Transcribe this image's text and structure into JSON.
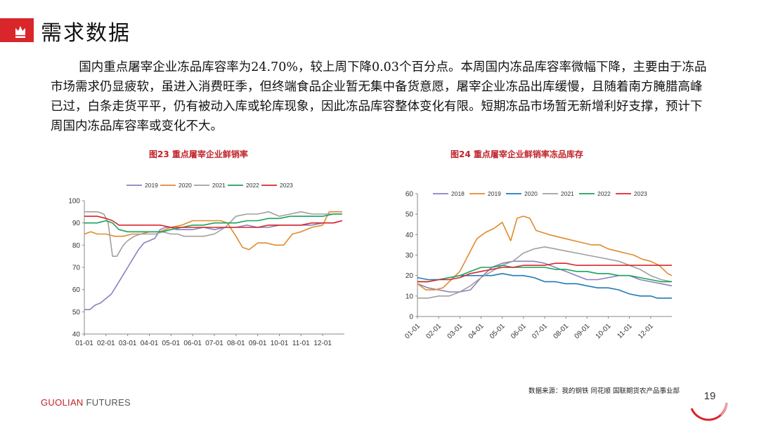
{
  "header": {
    "title": "需求数据"
  },
  "summary": "国内重点屠宰企业冻品库容率为24.70%，较上周下降0.03个百分点。本周国内冻品库容率微幅下降，主要由于冻品市场需求仍显疲软，虽进入消费旺季，但终端食品企业暂无集中备货意愿，屠宰企业冻品出库缓慢，且随着南方腌腊高峰已过，白条走货平平，仍有被动入库或轮库现象，因此冻品库容整体变化有限。短期冻品市场暂无新增利好支撑，预计下周国内冻品库容率或变化不大。",
  "footer": {
    "source": "数据来源：我的钢铁  同花顺  国联期货农产品事业部",
    "brand_main": "GUOLIAN",
    "brand_sub": " FUTURES",
    "page_number": "19"
  },
  "colors": {
    "accent": "#d9262b"
  },
  "chart_data": [
    {
      "type": "line",
      "title": "图23  重点屠宰企业鲜销率",
      "xlabel": "",
      "ylabel": "",
      "ylim": [
        40,
        100
      ],
      "yticks": [
        40,
        50,
        60,
        70,
        80,
        90,
        100
      ],
      "xlim": [
        0,
        12
      ],
      "xticks": [
        "01-01",
        "02-01",
        "03-01",
        "04-01",
        "05-01",
        "06-01",
        "07-01",
        "08-01",
        "09-01",
        "10-01",
        "11-01",
        "12-01"
      ],
      "grid": false,
      "legend_position": "top",
      "series": [
        {
          "name": "2019",
          "color": "#8c7fbf",
          "x": [
            0,
            0.25,
            0.5,
            0.75,
            1.0,
            1.25,
            1.5,
            1.75,
            2.0,
            2.25,
            2.5,
            2.75,
            3.0,
            3.25,
            3.5,
            3.75,
            4.0,
            4.25,
            4.5,
            4.75,
            5.0,
            5.5,
            6.0,
            6.5,
            7.0,
            7.5,
            8.0,
            8.5,
            9.0,
            9.5,
            10.0,
            10.5,
            11.0,
            11.5,
            11.9
          ],
          "y": [
            51,
            51,
            53,
            54,
            56,
            58,
            62,
            66,
            70,
            74,
            78,
            81,
            82,
            83,
            87,
            88,
            88,
            87,
            87,
            87,
            87,
            88,
            87,
            88,
            88,
            89,
            88,
            88,
            89,
            89,
            89,
            89,
            90,
            90,
            91
          ]
        },
        {
          "name": "2020",
          "color": "#e08a2e",
          "x": [
            0,
            0.3,
            0.6,
            1.0,
            1.4,
            1.8,
            2.2,
            2.6,
            3.0,
            3.5,
            4.0,
            4.5,
            5.0,
            5.5,
            6.0,
            6.3,
            6.6,
            7.0,
            7.3,
            7.6,
            8.0,
            8.4,
            8.8,
            9.2,
            9.6,
            10.0,
            10.5,
            11.0,
            11.3,
            11.6,
            11.9
          ],
          "y": [
            85,
            86,
            85,
            85,
            84,
            84,
            85,
            85,
            86,
            86,
            88,
            89,
            91,
            91,
            91,
            91,
            90,
            84,
            79,
            78,
            81,
            81,
            80,
            80,
            85,
            86,
            88,
            89,
            95,
            95,
            95
          ]
        },
        {
          "name": "2021",
          "color": "#a0a0a0",
          "x": [
            0,
            0.3,
            0.6,
            0.9,
            1.1,
            1.3,
            1.5,
            1.8,
            2.0,
            2.3,
            2.6,
            3.0,
            3.3,
            3.6,
            4.0,
            4.3,
            4.6,
            5.0,
            5.5,
            6.0,
            6.5,
            7.0,
            7.5,
            8.0,
            8.5,
            9.0,
            9.5,
            10.0,
            10.5,
            11.0,
            11.5,
            11.9
          ],
          "y": [
            95,
            95,
            95,
            94,
            90,
            75,
            75,
            80,
            82,
            84,
            85,
            85,
            85,
            86,
            85,
            85,
            84,
            84,
            84,
            85,
            88,
            93,
            94,
            94,
            95,
            93,
            94,
            95,
            94,
            94,
            94,
            94
          ]
        },
        {
          "name": "2022",
          "color": "#1aa35a",
          "x": [
            0,
            0.3,
            0.6,
            1.0,
            1.3,
            1.6,
            2.0,
            2.4,
            2.8,
            3.2,
            3.6,
            4.0,
            4.5,
            5.0,
            5.5,
            6.0,
            6.5,
            7.0,
            7.5,
            8.0,
            8.5,
            9.0,
            9.5,
            10.0,
            10.5,
            11.0,
            11.5,
            11.9
          ],
          "y": [
            90,
            90,
            90,
            91,
            90,
            87,
            86,
            86,
            86,
            86,
            86,
            87,
            88,
            89,
            89,
            90,
            90,
            90,
            91,
            91,
            92,
            92,
            93,
            93,
            93,
            93,
            94,
            94
          ]
        },
        {
          "name": "2023",
          "color": "#d9262b",
          "x": [
            0,
            0.3,
            0.6,
            1.0,
            1.3,
            1.6,
            2.0,
            2.5,
            3.0,
            3.5,
            4.0,
            4.5,
            5.0,
            5.5,
            6.0,
            6.5,
            7.0,
            7.5,
            8.0,
            8.5,
            9.0,
            9.5,
            10.0,
            10.5,
            11.0,
            11.5,
            11.9
          ],
          "y": [
            93,
            93,
            93,
            92,
            91,
            89,
            89,
            89,
            89,
            89,
            88,
            88,
            88,
            88,
            88,
            88,
            88,
            88,
            88,
            89,
            89,
            89,
            89,
            90,
            90,
            90,
            91
          ]
        }
      ]
    },
    {
      "type": "line",
      "title": "图24  重点屠宰企业鲜销率冻品库存",
      "xlabel": "",
      "ylabel": "",
      "ylim": [
        0,
        60
      ],
      "yticks": [
        0,
        10,
        20,
        30,
        40,
        50,
        60
      ],
      "xlim": [
        0,
        12
      ],
      "xticks": [
        "01-01",
        "02-01",
        "03-01",
        "04-01",
        "05-01",
        "06-01",
        "07-01",
        "08-01",
        "09-01",
        "10-01",
        "11-01",
        "12-01"
      ],
      "grid": false,
      "legend_position": "top",
      "series": [
        {
          "name": "2018",
          "color": "#8c7fbf",
          "x": [
            0,
            0.5,
            1.0,
            1.5,
            2.0,
            2.5,
            3.0,
            3.5,
            4.0,
            4.5,
            5.0,
            5.5,
            6.0,
            6.5,
            7.0,
            7.5,
            8.0,
            8.5,
            9.0,
            9.5,
            10.0,
            10.5,
            11.0,
            11.5,
            12.0
          ],
          "y": [
            16,
            14,
            13,
            12,
            12,
            13,
            19,
            24,
            26,
            27,
            27,
            27,
            26,
            24,
            22,
            20,
            18,
            18,
            19,
            20,
            20,
            18,
            17,
            16,
            15
          ]
        },
        {
          "name": "2019",
          "color": "#e08a2e",
          "x": [
            0,
            0.4,
            0.8,
            1.2,
            1.6,
            2.0,
            2.4,
            2.8,
            3.2,
            3.6,
            4.0,
            4.4,
            4.7,
            5.0,
            5.3,
            5.6,
            5.9,
            6.2,
            6.6,
            7.0,
            7.4,
            7.8,
            8.2,
            8.6,
            9.0,
            9.4,
            9.8,
            10.2,
            10.6,
            11.0,
            11.4,
            11.8,
            12.0
          ],
          "y": [
            16,
            13,
            13,
            14,
            18,
            22,
            30,
            38,
            41,
            43,
            46,
            37,
            48,
            49,
            48,
            42,
            41,
            40,
            39,
            38,
            37,
            36,
            35,
            35,
            33,
            32,
            31,
            30,
            28,
            27,
            25,
            21,
            20
          ]
        },
        {
          "name": "2020",
          "color": "#1f7ab8",
          "x": [
            0,
            0.5,
            1.0,
            1.5,
            2.0,
            2.5,
            3.0,
            3.5,
            4.0,
            4.5,
            5.0,
            5.5,
            6.0,
            6.5,
            7.0,
            7.5,
            8.0,
            8.5,
            9.0,
            9.5,
            10.0,
            10.5,
            11.0,
            11.3,
            11.6,
            12.0
          ],
          "y": [
            19,
            18,
            18,
            19,
            20,
            20,
            20,
            20,
            21,
            20,
            20,
            19,
            17,
            17,
            16,
            16,
            15,
            14,
            14,
            13,
            11,
            10,
            10,
            9,
            9,
            9
          ]
        },
        {
          "name": "2021",
          "color": "#a0a0a0",
          "x": [
            0,
            0.5,
            1.0,
            1.5,
            2.0,
            2.5,
            3.0,
            3.5,
            4.0,
            4.5,
            5.0,
            5.5,
            6.0,
            6.5,
            7.0,
            7.5,
            8.0,
            8.5,
            9.0,
            9.5,
            10.0,
            10.5,
            11.0,
            11.5,
            12.0
          ],
          "y": [
            9,
            9,
            10,
            10,
            12,
            15,
            19,
            22,
            25,
            27,
            31,
            33,
            34,
            33,
            32,
            31,
            30,
            29,
            28,
            27,
            25,
            23,
            20,
            18,
            17
          ]
        },
        {
          "name": "2022",
          "color": "#1aa35a",
          "x": [
            0,
            0.5,
            1.0,
            1.5,
            2.0,
            2.5,
            3.0,
            3.5,
            4.0,
            4.5,
            5.0,
            5.5,
            6.0,
            6.5,
            7.0,
            7.5,
            8.0,
            8.5,
            9.0,
            9.5,
            10.0,
            10.5,
            11.0,
            11.5,
            12.0
          ],
          "y": [
            17,
            17,
            18,
            19,
            20,
            22,
            24,
            24,
            25,
            24,
            24,
            24,
            24,
            23,
            23,
            22,
            22,
            21,
            21,
            20,
            20,
            19,
            18,
            17,
            17
          ]
        },
        {
          "name": "2023",
          "color": "#d9262b",
          "x": [
            0,
            0.5,
            1.0,
            1.5,
            2.0,
            2.5,
            3.0,
            3.5,
            4.0,
            4.5,
            5.0,
            5.5,
            6.0,
            6.5,
            7.0,
            7.5,
            8.0,
            8.5,
            9.0,
            9.5,
            10.0,
            10.5,
            11.0,
            11.5,
            12.0
          ],
          "y": [
            17,
            17,
            18,
            18,
            19,
            21,
            22,
            23,
            24,
            24,
            25,
            25,
            25,
            26,
            26,
            25,
            25,
            25,
            25,
            25,
            25,
            25,
            25,
            25,
            25
          ]
        }
      ]
    }
  ]
}
